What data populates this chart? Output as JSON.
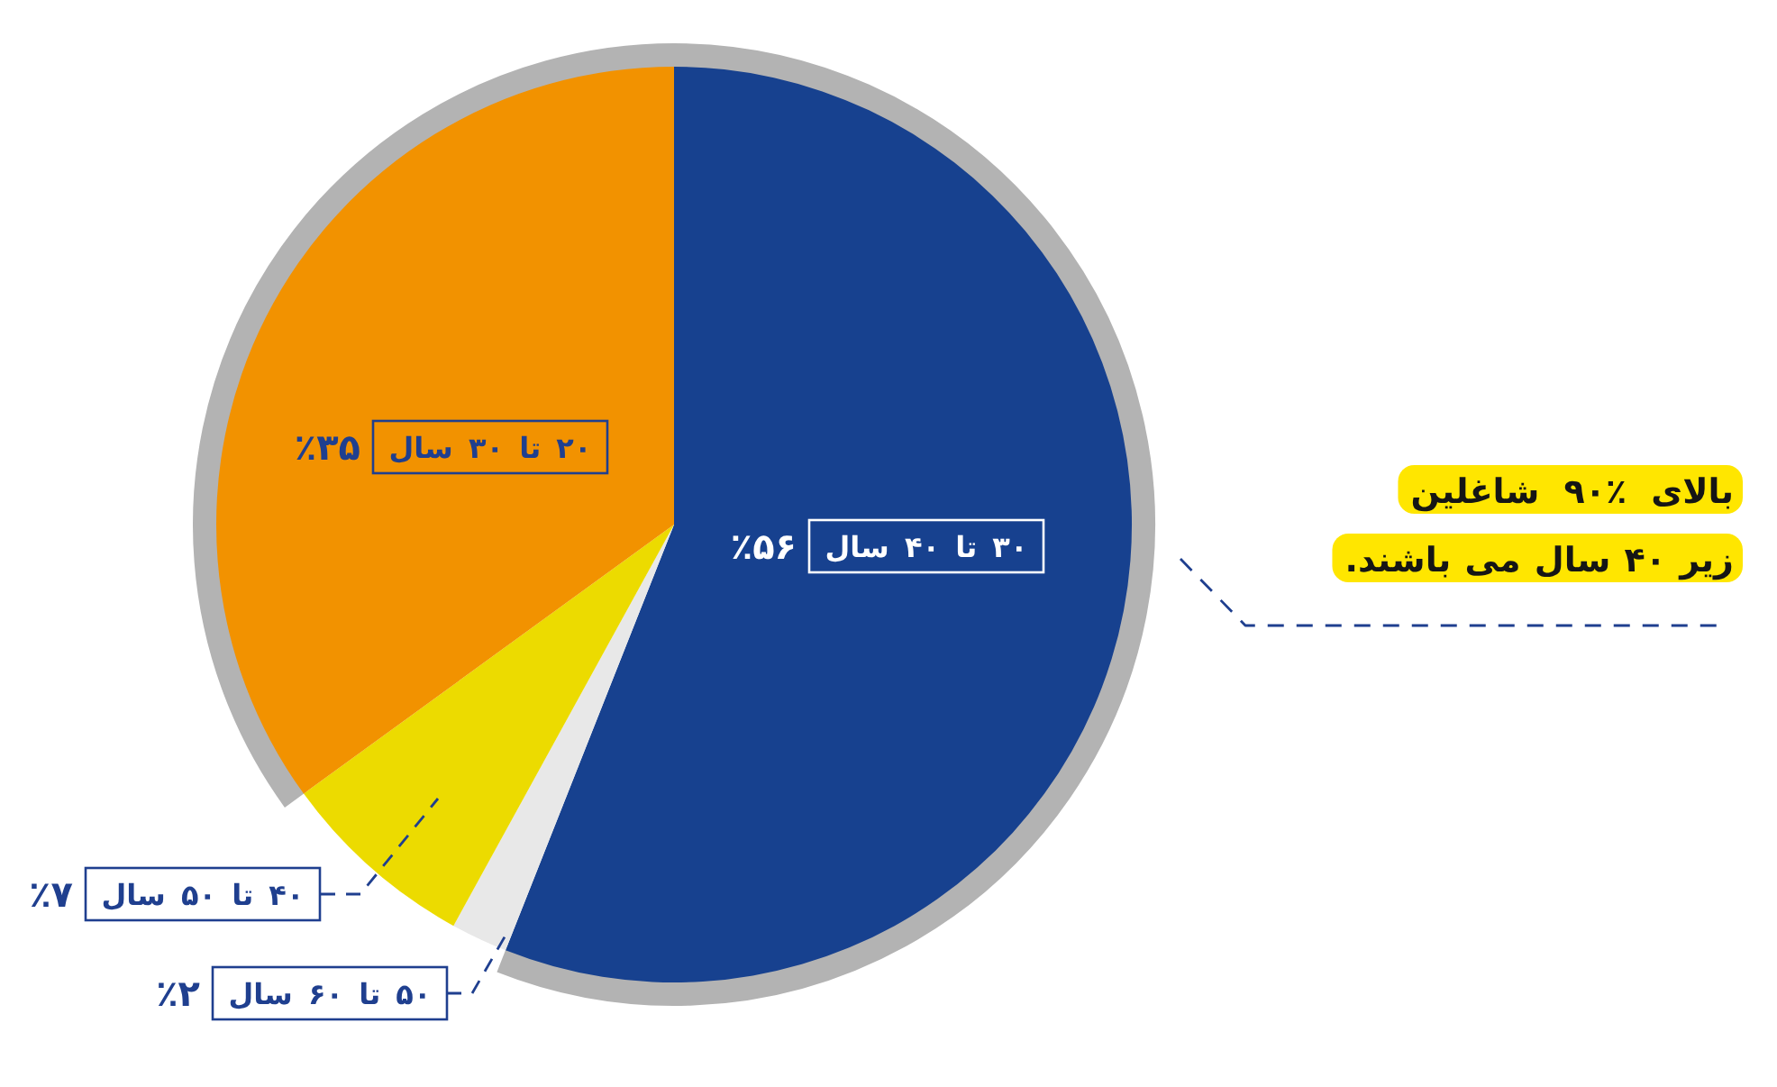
{
  "chart_data": {
    "type": "pie",
    "categories": [
      "۳۰ تا ۴۰ سال",
      "۵۰ تا ۶۰ سال",
      "۴۰ تا ۵۰ سال",
      "۲۰ تا ۳۰ سال"
    ],
    "values": [
      56,
      2,
      7,
      35
    ],
    "colors": [
      "#17418f",
      "#e8e8e8",
      "#ecdb00",
      "#f29200"
    ],
    "value_labels": [
      "٪۵۶",
      "٪۲",
      "٪۷",
      "٪۳۵"
    ],
    "annotations": [
      "بالای ٪۹۰ شاغلین",
      "زیر ۴۰ سال می باشند."
    ]
  }
}
